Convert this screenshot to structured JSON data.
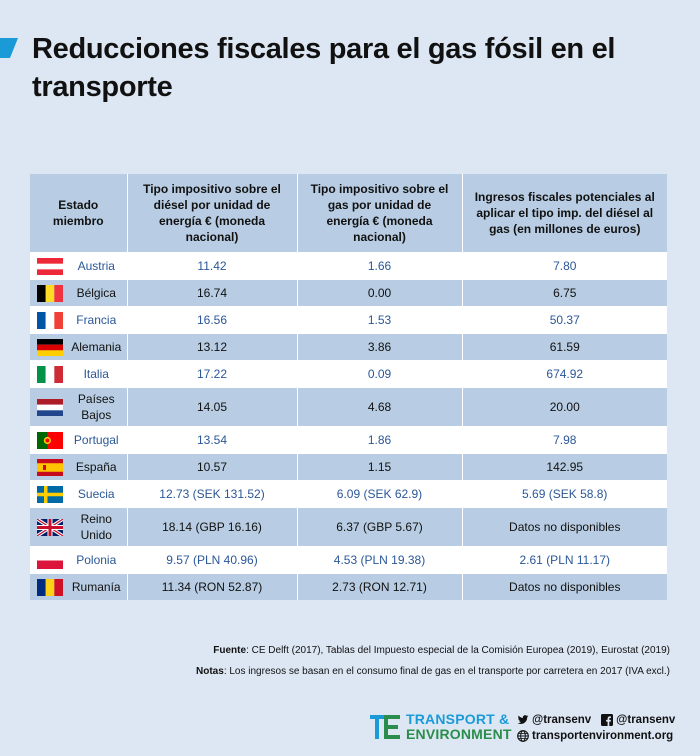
{
  "title": "Reducciones fiscales para el gas fósil en el transporte",
  "table": {
    "headers": [
      "Estado miembro",
      "Tipo impositivo sobre el diésel por unidad de energía € (moneda nacional)",
      "Tipo impositivo sobre el gas por unidad de energía € (moneda nacional)",
      "Ingresos fiscales potenciales al aplicar el tipo imp. del diésel al gas (en millones de euros)"
    ],
    "rows": [
      {
        "country": "Austria",
        "diesel": "11.42",
        "gas": "1.66",
        "revenue": "7.80",
        "flag": "austria-flag"
      },
      {
        "country": "Bélgica",
        "diesel": "16.74",
        "gas": "0.00",
        "revenue": "6.75",
        "flag": "belgium-flag"
      },
      {
        "country": "Francia",
        "diesel": "16.56",
        "gas": "1.53",
        "revenue": "50.37",
        "flag": "france-flag"
      },
      {
        "country": "Alemania",
        "diesel": "13.12",
        "gas": "3.86",
        "revenue": "61.59",
        "flag": "germany-flag"
      },
      {
        "country": "Italia",
        "diesel": "17.22",
        "gas": "0.09",
        "revenue": "674.92",
        "flag": "italy-flag"
      },
      {
        "country": "Países Bajos",
        "diesel": "14.05",
        "gas": "4.68",
        "revenue": "20.00",
        "flag": "netherlands-flag"
      },
      {
        "country": "Portugal",
        "diesel": "13.54",
        "gas": "1.86",
        "revenue": "7.98",
        "flag": "portugal-flag"
      },
      {
        "country": "España",
        "diesel": "10.57",
        "gas": "1.15",
        "revenue": "142.95",
        "flag": "spain-flag"
      },
      {
        "country": "Suecia",
        "diesel": "12.73 (SEK 131.52)",
        "gas": "6.09 (SEK 62.9)",
        "revenue": "5.69 (SEK 58.8)",
        "flag": "sweden-flag"
      },
      {
        "country": "Reino Unido",
        "diesel": "18.14 (GBP 16.16)",
        "gas": "6.37 (GBP 5.67)",
        "revenue": "Datos no disponibles",
        "flag": "uk-flag"
      },
      {
        "country": "Polonia",
        "diesel": "9.57 (PLN 40.96)",
        "gas": "4.53 (PLN 19.38)",
        "revenue": "2.61 (PLN 11.17)",
        "flag": "poland-flag"
      },
      {
        "country": "Rumanía",
        "diesel": "11.34 (RON 52.87)",
        "gas": "2.73 (RON 12.71)",
        "revenue": "Datos no disponibles",
        "flag": "romania-flag"
      }
    ]
  },
  "footer": {
    "source_label": "Fuente",
    "source_text": ": CE Delft (2017), Tablas del Impuesto especial de la Comisión Europea (2019), Eurostat (2019)",
    "notes_label": "Notas",
    "notes_text": ": Los ingresos se basan en el consumo final de gas en el transporte por carretera en 2017 (IVA excl.)"
  },
  "brand": {
    "line1": "TRANSPORT &",
    "line2": "ENVIRONMENT",
    "twitter": "@transenv",
    "facebook": "@transenv",
    "website": "transportenvironment.org"
  },
  "colors": {
    "background": "#dde7f4",
    "row_alt": "#b8cde3",
    "row_highlight": "#ffffff",
    "highlight_text": "#2b5797",
    "brand_blue": "#1a9bd7",
    "brand_green": "#2a8d4b"
  }
}
